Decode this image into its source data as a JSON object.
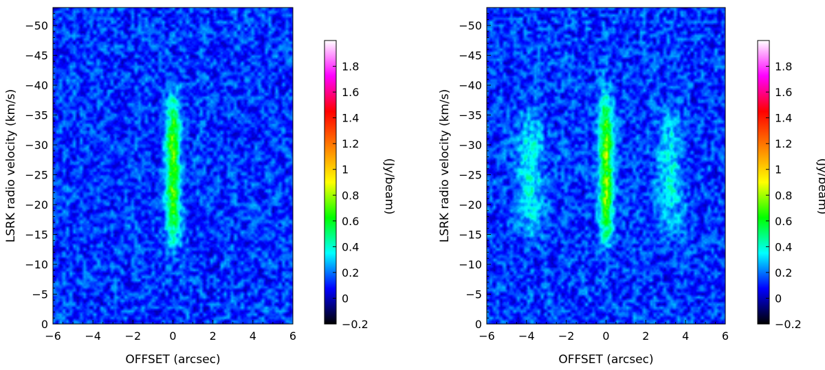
{
  "chart_data": [
    {
      "type": "heatmap",
      "panel": "left",
      "xlabel": "OFFSET (arcsec)",
      "ylabel": "LSRK radio velocity  (km/s)",
      "xlim": [
        -6,
        6
      ],
      "ylim": [
        0,
        -53
      ],
      "x_ticks": [
        -6,
        -4,
        -2,
        0,
        2,
        4,
        6
      ],
      "x_tick_labels": [
        "−6",
        "−4",
        "−2",
        "0",
        "2",
        "4",
        "6"
      ],
      "y_ticks": [
        0,
        -5,
        -10,
        -15,
        -20,
        -25,
        -30,
        -35,
        -40,
        -45,
        -50
      ],
      "y_tick_labels": [
        "0",
        "−5",
        "−10",
        "−15",
        "−20",
        "−25",
        "−30",
        "−35",
        "−40",
        "−45",
        "−50"
      ],
      "emission_features": [
        {
          "offset_center": 0.0,
          "offset_width": 0.7,
          "velocity_range": [
            -14,
            -38
          ],
          "peak_flux": 0.55
        }
      ],
      "colorbar": {
        "label": "(Jy/beam)",
        "range": [
          -0.2,
          2.0
        ],
        "ticks": [
          -0.2,
          0,
          0.2,
          0.4,
          0.6,
          0.8,
          1,
          1.2,
          1.4,
          1.6,
          1.8
        ],
        "tick_labels": [
          "−0.2",
          "0",
          "0.2",
          "0.4",
          "0.6",
          "0.8",
          "1",
          "1.2",
          "1.4",
          "1.6",
          "1.8"
        ],
        "colormap": [
          "#000000",
          "#0000ff",
          "#00ffff",
          "#00ff00",
          "#ffff00",
          "#ff8000",
          "#ff0000",
          "#ff00ff",
          "#ffffff"
        ]
      }
    },
    {
      "type": "heatmap",
      "panel": "right",
      "xlabel": "OFFSET (arcsec)",
      "ylabel": "LSRK radio velocity  (km/s)",
      "xlim": [
        -6,
        6
      ],
      "ylim": [
        0,
        -53
      ],
      "x_ticks": [
        -6,
        -4,
        -2,
        0,
        2,
        4,
        6
      ],
      "x_tick_labels": [
        "−6",
        "−4",
        "−2",
        "0",
        "2",
        "4",
        "6"
      ],
      "y_ticks": [
        0,
        -5,
        -10,
        -15,
        -20,
        -25,
        -30,
        -35,
        -40,
        -45,
        -50
      ],
      "y_tick_labels": [
        "0",
        "−5",
        "−10",
        "−15",
        "−20",
        "−25",
        "−30",
        "−35",
        "−40",
        "−45",
        "−50"
      ],
      "emission_features": [
        {
          "offset_center": 0.0,
          "offset_width": 0.7,
          "velocity_range": [
            -14,
            -38
          ],
          "peak_flux": 0.6
        },
        {
          "offset_center": -3.8,
          "offset_width": 1.2,
          "velocity_range": [
            -15,
            -35
          ],
          "peak_flux": 0.25
        },
        {
          "offset_center": 3.2,
          "offset_width": 1.2,
          "velocity_range": [
            -15,
            -35
          ],
          "peak_flux": 0.22
        }
      ],
      "colorbar": {
        "label": "(Jy/beam)",
        "range": [
          -0.2,
          2.0
        ],
        "ticks": [
          -0.2,
          0,
          0.2,
          0.4,
          0.6,
          0.8,
          1,
          1.2,
          1.4,
          1.6,
          1.8
        ],
        "tick_labels": [
          "−0.2",
          "0",
          "0.2",
          "0.4",
          "0.6",
          "0.8",
          "1",
          "1.2",
          "1.4",
          "1.6",
          "1.8"
        ],
        "colormap": [
          "#000000",
          "#0000ff",
          "#00ffff",
          "#00ff00",
          "#ffff00",
          "#ff8000",
          "#ff0000",
          "#ff00ff",
          "#ffffff"
        ]
      }
    }
  ]
}
